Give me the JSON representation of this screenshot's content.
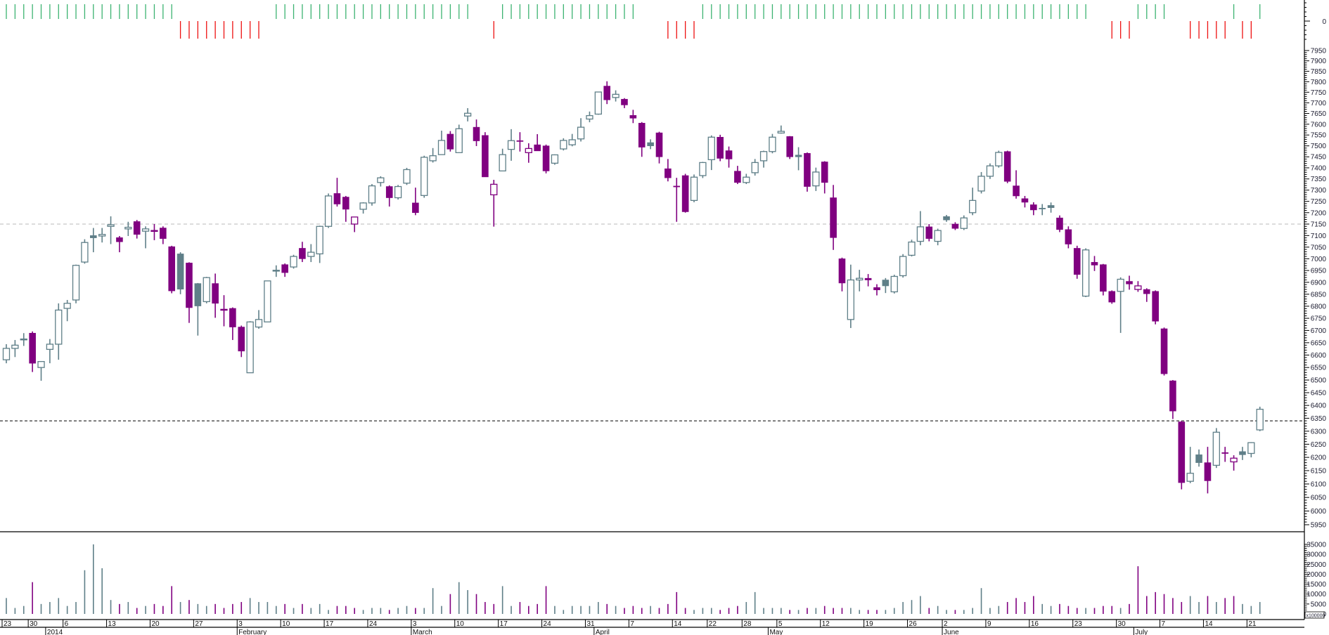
{
  "chart_data": {
    "type": "candlestick",
    "y_scale": "log",
    "ylim": [
      5950,
      7950
    ],
    "grid": false,
    "colors": {
      "up": "#5f7f88",
      "down": "#800080",
      "buy_signal": "#3cb371",
      "sell_signal": "#ee1111",
      "reference_grey": "#b8b8b8",
      "reference_black": "#000000"
    },
    "y_ticks": [
      7950,
      7900,
      7850,
      7800,
      7750,
      7700,
      7650,
      7600,
      7550,
      7500,
      7450,
      7400,
      7350,
      7300,
      7250,
      7200,
      7150,
      7100,
      7050,
      7000,
      6950,
      6900,
      6850,
      6800,
      6750,
      6700,
      6650,
      6600,
      6550,
      6500,
      6450,
      6400,
      6350,
      6300,
      6250,
      6200,
      6150,
      6100,
      6050,
      6000,
      5950
    ],
    "reference_lines": [
      {
        "value": 7150,
        "style": "dashed",
        "color": "#b8b8b8"
      },
      {
        "value": 6340,
        "style": "dashed",
        "color": "#000000"
      }
    ],
    "signal_axis_label": "0",
    "signals": [
      1,
      1,
      1,
      1,
      1,
      1,
      1,
      1,
      1,
      1,
      1,
      1,
      1,
      1,
      1,
      1,
      1,
      1,
      1,
      1,
      -1,
      -1,
      -1,
      -1,
      -1,
      -1,
      -1,
      -1,
      -1,
      -1,
      0,
      1,
      1,
      1,
      1,
      1,
      1,
      1,
      1,
      1,
      1,
      1,
      1,
      1,
      1,
      1,
      1,
      1,
      1,
      1,
      1,
      1,
      1,
      1,
      0,
      0,
      -1,
      1,
      1,
      1,
      1,
      1,
      1,
      1,
      1,
      1,
      1,
      1,
      1,
      1,
      1,
      1,
      1,
      0,
      0,
      0,
      -1,
      -1,
      -1,
      -1,
      1,
      1,
      1,
      1,
      1,
      1,
      1,
      1,
      1,
      1,
      1,
      1,
      1,
      1,
      1,
      1,
      1,
      1,
      1,
      1,
      1,
      1,
      1,
      1,
      1,
      1,
      1,
      1,
      1,
      1,
      1,
      1,
      1,
      1,
      1,
      1,
      1,
      1,
      1,
      1,
      1,
      1,
      1,
      1,
      1,
      0,
      0,
      -1,
      -1,
      -1,
      1,
      1,
      1,
      1,
      0,
      0,
      -1,
      -1,
      -1,
      -1,
      -1,
      1,
      -1,
      -1,
      1
    ],
    "candles_ohlc": [
      [
        6581,
        6644,
        6567,
        6627
      ],
      [
        6627,
        6661,
        6592,
        6640
      ],
      [
        6665,
        6689,
        6637,
        6665
      ],
      [
        6689,
        6696,
        6532,
        6567
      ],
      [
        6550,
        6574,
        6497,
        6574
      ],
      [
        6623,
        6665,
        6567,
        6644
      ],
      [
        6644,
        6812,
        6581,
        6784
      ],
      [
        6791,
        6826,
        6738,
        6812
      ],
      [
        6826,
        6975,
        6812,
        6972
      ],
      [
        6986,
        7084,
        6979,
        7070
      ],
      [
        7100,
        7133,
        7028,
        7090
      ],
      [
        7098,
        7133,
        7070,
        7105
      ],
      [
        7140,
        7184,
        7063,
        7147
      ],
      [
        7091,
        7098,
        7028,
        7073
      ],
      [
        7129,
        7160,
        7098,
        7136
      ],
      [
        7161,
        7168,
        7087,
        7105
      ],
      [
        7119,
        7140,
        7045,
        7129
      ],
      [
        7122,
        7150,
        7080,
        7122
      ],
      [
        7133,
        7140,
        7063,
        7087
      ],
      [
        7052,
        7056,
        6854,
        6864
      ],
      [
        7021,
        7028,
        6850,
        6871
      ],
      [
        6982,
        6985,
        6731,
        6794
      ],
      [
        6895,
        6897,
        6679,
        6801
      ],
      [
        6819,
        6923,
        6812,
        6920
      ],
      [
        6895,
        6937,
        6752,
        6812
      ],
      [
        6787,
        6846,
        6717,
        6787
      ],
      [
        6791,
        6795,
        6661,
        6714
      ],
      [
        6714,
        6720,
        6592,
        6616
      ],
      [
        6529,
        6738,
        6529,
        6735
      ],
      [
        6714,
        6784,
        6707,
        6745
      ],
      [
        6735,
        6906,
        6735,
        6906
      ],
      [
        6951,
        6972,
        6923,
        6951
      ],
      [
        6975,
        6980,
        6923,
        6941
      ],
      [
        6965,
        7017,
        6958,
        7010
      ],
      [
        7045,
        7073,
        6986,
        7000
      ],
      [
        7010,
        7063,
        6986,
        7028
      ],
      [
        7021,
        7143,
        6982,
        7140
      ],
      [
        7140,
        7285,
        7133,
        7274
      ],
      [
        7285,
        7355,
        7227,
        7238
      ],
      [
        7269,
        7274,
        7160,
        7215
      ],
      [
        7150,
        7181,
        7115,
        7181
      ],
      [
        7215,
        7246,
        7196,
        7243
      ],
      [
        7243,
        7327,
        7231,
        7319
      ],
      [
        7334,
        7362,
        7316,
        7355
      ],
      [
        7316,
        7321,
        7227,
        7266
      ],
      [
        7266,
        7323,
        7258,
        7316
      ],
      [
        7331,
        7400,
        7323,
        7392
      ],
      [
        7243,
        7311,
        7189,
        7200
      ],
      [
        7276,
        7455,
        7266,
        7448
      ],
      [
        7432,
        7490,
        7424,
        7455
      ],
      [
        7460,
        7570,
        7460,
        7525
      ],
      [
        7554,
        7568,
        7474,
        7485
      ],
      [
        7469,
        7598,
        7469,
        7579
      ],
      [
        7638,
        7675,
        7613,
        7651
      ],
      [
        7586,
        7622,
        7499,
        7523
      ],
      [
        7548,
        7563,
        7359,
        7359
      ],
      [
        7279,
        7346,
        7139,
        7326
      ],
      [
        7386,
        7487,
        7386,
        7460
      ],
      [
        7484,
        7577,
        7432,
        7524
      ],
      [
        7524,
        7563,
        7474,
        7522
      ],
      [
        7469,
        7512,
        7423,
        7488
      ],
      [
        7505,
        7554,
        7477,
        7477
      ],
      [
        7500,
        7506,
        7375,
        7386
      ],
      [
        7421,
        7461,
        7414,
        7459
      ],
      [
        7486,
        7535,
        7479,
        7525
      ],
      [
        7505,
        7555,
        7498,
        7528
      ],
      [
        7532,
        7628,
        7520,
        7586
      ],
      [
        7624,
        7659,
        7609,
        7640
      ],
      [
        7647,
        7751,
        7644,
        7751
      ],
      [
        7779,
        7802,
        7694,
        7714
      ],
      [
        7725,
        7759,
        7706,
        7740
      ],
      [
        7717,
        7722,
        7675,
        7690
      ],
      [
        7641,
        7667,
        7605,
        7628
      ],
      [
        7605,
        7610,
        7450,
        7494
      ],
      [
        7515,
        7530,
        7485,
        7500
      ],
      [
        7560,
        7565,
        7420,
        7450
      ],
      [
        7396,
        7440,
        7339,
        7355
      ],
      [
        7318,
        7355,
        7160,
        7316
      ],
      [
        7365,
        7373,
        7200,
        7204
      ],
      [
        7254,
        7370,
        7246,
        7358
      ],
      [
        7365,
        7427,
        7354,
        7424
      ],
      [
        7437,
        7548,
        7390,
        7540
      ],
      [
        7540,
        7551,
        7430,
        7443
      ],
      [
        7478,
        7497,
        7401,
        7440
      ],
      [
        7385,
        7409,
        7327,
        7334
      ],
      [
        7334,
        7373,
        7327,
        7358
      ],
      [
        7378,
        7440,
        7365,
        7424
      ],
      [
        7432,
        7478,
        7401,
        7474
      ],
      [
        7474,
        7555,
        7466,
        7540
      ],
      [
        7559,
        7594,
        7556,
        7567
      ],
      [
        7543,
        7545,
        7440,
        7450
      ],
      [
        7458,
        7494,
        7389,
        7450
      ],
      [
        7466,
        7470,
        7293,
        7316
      ],
      [
        7319,
        7401,
        7296,
        7381
      ],
      [
        7427,
        7430,
        7285,
        7334
      ],
      [
        7266,
        7323,
        7038,
        7091
      ],
      [
        7000,
        7005,
        6862,
        6897
      ],
      [
        6745,
        6975,
        6710,
        6910
      ],
      [
        6910,
        6953,
        6862,
        6917
      ],
      [
        6917,
        6935,
        6883,
        6910
      ],
      [
        6878,
        6892,
        6845,
        6868
      ],
      [
        6910,
        6918,
        6855,
        6885
      ],
      [
        6860,
        6932,
        6853,
        6925
      ],
      [
        6928,
        7020,
        6920,
        7010
      ],
      [
        7015,
        7082,
        7010,
        7072
      ],
      [
        7075,
        7207,
        7058,
        7138
      ],
      [
        7138,
        7150,
        7075,
        7087
      ],
      [
        7075,
        7130,
        7058,
        7122
      ],
      [
        7183,
        7190,
        7160,
        7168
      ],
      [
        7150,
        7158,
        7124,
        7131
      ],
      [
        7131,
        7188,
        7124,
        7177
      ],
      [
        7200,
        7311,
        7189,
        7254
      ],
      [
        7296,
        7381,
        7285,
        7362
      ],
      [
        7362,
        7420,
        7350,
        7409
      ],
      [
        7409,
        7478,
        7401,
        7470
      ],
      [
        7474,
        7478,
        7331,
        7339
      ],
      [
        7319,
        7389,
        7262,
        7274
      ],
      [
        7262,
        7274,
        7223,
        7246
      ],
      [
        7235,
        7246,
        7189,
        7212
      ],
      [
        7220,
        7238,
        7189,
        7219
      ],
      [
        7232,
        7245,
        7200,
        7222
      ],
      [
        7177,
        7188,
        7115,
        7126
      ],
      [
        7126,
        7140,
        7045,
        7063
      ],
      [
        7045,
        7056,
        6915,
        6933
      ],
      [
        6842,
        7045,
        6838,
        7038
      ],
      [
        6985,
        7012,
        6948,
        6973
      ],
      [
        6975,
        6978,
        6845,
        6862
      ],
      [
        6862,
        6866,
        6810,
        6817
      ],
      [
        6862,
        6921,
        6690,
        6913
      ],
      [
        6904,
        6928,
        6869,
        6893
      ],
      [
        6870,
        6905,
        6860,
        6885
      ],
      [
        6870,
        6875,
        6818,
        6852
      ],
      [
        6862,
        6866,
        6725,
        6738
      ],
      [
        6707,
        6712,
        6518,
        6525
      ],
      [
        6497,
        6500,
        6347,
        6378
      ],
      [
        6336,
        6340,
        6080,
        6105
      ],
      [
        6110,
        6240,
        6103,
        6140
      ],
      [
        6210,
        6230,
        6165,
        6180
      ],
      [
        6180,
        6240,
        6065,
        6112
      ],
      [
        6170,
        6312,
        6160,
        6296
      ],
      [
        6218,
        6240,
        6183,
        6215
      ],
      [
        6183,
        6208,
        6150,
        6197
      ],
      [
        6222,
        6240,
        6190,
        6210
      ],
      [
        6215,
        6258,
        6200,
        6256
      ],
      [
        6305,
        6395,
        6300,
        6385
      ]
    ],
    "volume": [
      8000,
      3000,
      4000,
      16000,
      5000,
      6000,
      8000,
      4000,
      6000,
      22000,
      35000,
      23000,
      7000,
      5000,
      6000,
      3000,
      4000,
      5000,
      4000,
      14000,
      6000,
      7000,
      5000,
      4000,
      5000,
      3000,
      5000,
      6000,
      8000,
      6000,
      6000,
      4000,
      5000,
      3000,
      5000,
      3000,
      5000,
      2000,
      4000,
      4000,
      3000,
      2000,
      3000,
      3000,
      2000,
      3000,
      4000,
      3000,
      3000,
      13000,
      4000,
      10000,
      16000,
      12000,
      10000,
      6000,
      5000,
      14000,
      4000,
      6000,
      4000,
      5000,
      14000,
      4000,
      2000,
      4000,
      4000,
      4000,
      6000,
      5000,
      4000,
      3000,
      4000,
      3000,
      4000,
      3000,
      5000,
      11000,
      3000,
      2000,
      3000,
      3000,
      2000,
      3000,
      4000,
      6000,
      11000,
      3000,
      3000,
      3000,
      2000,
      2000,
      3000,
      3000,
      4000,
      3000,
      3000,
      3000,
      2000,
      2000,
      2000,
      2000,
      3000,
      6000,
      7000,
      9000,
      3000,
      4000,
      2000,
      2000,
      2000,
      3000,
      13000,
      3000,
      4000,
      6000,
      8000,
      6000,
      9000,
      5000,
      4000,
      5000,
      4000,
      3000,
      3000,
      3000,
      4000,
      4000,
      3000,
      5000,
      24000,
      9000,
      11000,
      10000,
      8000,
      6000,
      9000,
      6000,
      9000,
      6000,
      8000,
      9000,
      5000,
      4000,
      6000
    ],
    "volume_ticks": [
      35000,
      30000,
      25000,
      20000,
      15000,
      10000,
      5000,
      0
    ],
    "volume_multiplier_label": "x100000",
    "x_day_labels": [
      "23",
      "30",
      "6",
      "13",
      "20",
      "27",
      "3",
      "10",
      "17",
      "24",
      "3",
      "10",
      "17",
      "24",
      "31",
      "7",
      "14",
      "22",
      "28",
      "5",
      "12",
      "19",
      "26",
      "2",
      "9",
      "16",
      "23",
      "30",
      "7",
      "14",
      "21"
    ],
    "x_month_labels": [
      "2014",
      "February",
      "March",
      "April",
      "May",
      "June",
      "July"
    ]
  }
}
